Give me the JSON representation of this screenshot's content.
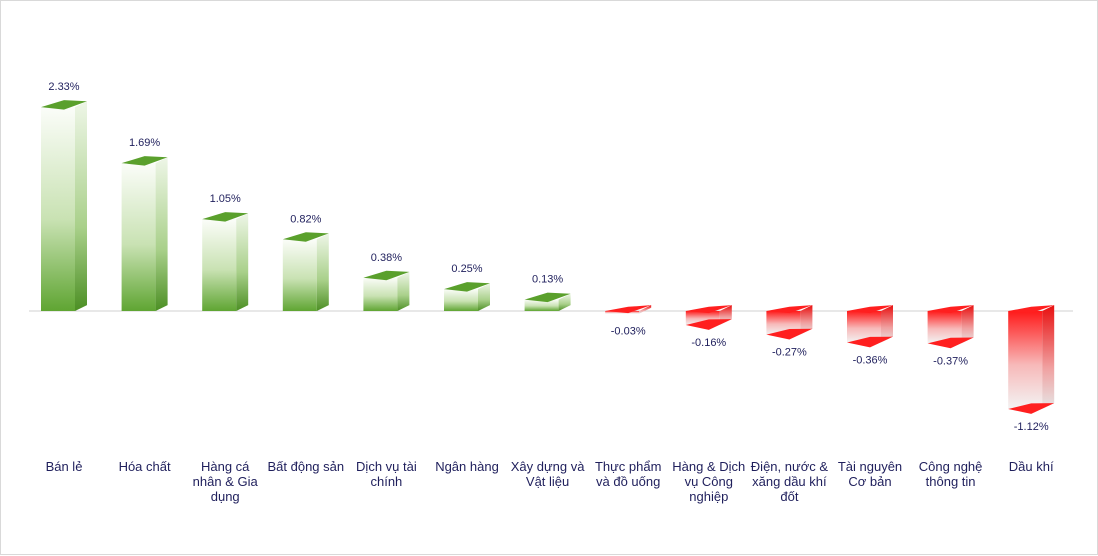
{
  "chart_data": {
    "type": "bar",
    "title": "",
    "xlabel": "",
    "ylabel": "",
    "ylim": [
      -1.12,
      2.33
    ],
    "grid": false,
    "legend": "none",
    "categories": [
      "Bán lẻ",
      "Hóa chất",
      "Hàng cá nhân & Gia dụng",
      "Bất động sản",
      "Dịch vụ tài chính",
      "Ngân hàng",
      "Xây dựng và Vật liệu",
      "Thực phẩm và đồ uống",
      "Hàng & Dịch vụ Công nghiệp",
      "Điện, nước & xăng dầu khí đốt",
      "Tài nguyên Cơ bản",
      "Công nghệ thông tin",
      "Dầu khí"
    ],
    "category_lines": [
      [
        "Bán lẻ"
      ],
      [
        "Hóa chất"
      ],
      [
        "Hàng cá",
        "nhân & Gia",
        "dụng"
      ],
      [
        "Bất động sản"
      ],
      [
        "Dịch vụ tài",
        "chính"
      ],
      [
        "Ngân hàng"
      ],
      [
        "Xây dựng và",
        "Vật liệu"
      ],
      [
        "Thực phẩm",
        "và đồ uống"
      ],
      [
        "Hàng & Dịch",
        "vụ Công",
        "nghiệp"
      ],
      [
        "Điện, nước &",
        "xăng dầu khí",
        "đốt"
      ],
      [
        "Tài nguyên",
        "Cơ bản"
      ],
      [
        "Công nghệ",
        "thông tin"
      ],
      [
        "Dầu khí"
      ]
    ],
    "values": [
      2.33,
      1.69,
      1.05,
      0.82,
      0.38,
      0.25,
      0.13,
      -0.03,
      -0.16,
      -0.27,
      -0.36,
      -0.37,
      -1.12
    ],
    "value_labels": [
      "2.33%",
      "1.69%",
      "1.05%",
      "0.82%",
      "0.38%",
      "0.25%",
      "0.13%",
      "-0.03%",
      "-0.16%",
      "-0.27%",
      "-0.36%",
      "-0.37%",
      "-1.12%"
    ],
    "colors": {
      "positive": "#5aa02c",
      "positive_light": "#f4faef",
      "negative": "#ff1f1f",
      "negative_light": "#f2f2f2",
      "label_text": "#1f1f5c",
      "baseline": "#d0d0d0"
    }
  }
}
